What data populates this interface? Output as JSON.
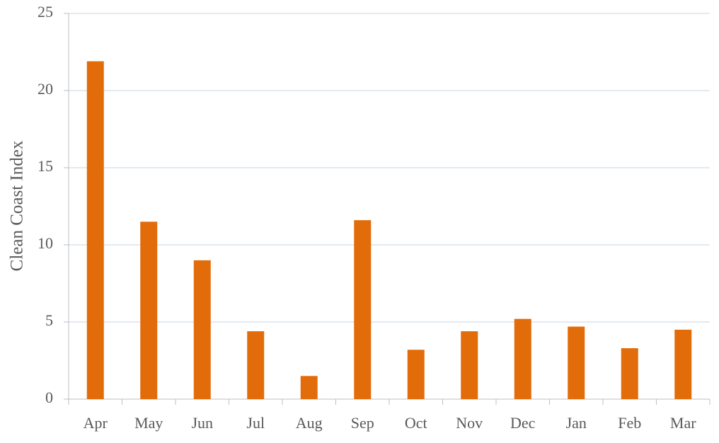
{
  "chart_data": {
    "type": "bar",
    "y_label": "Clean Coast Index",
    "categories": [
      "Apr",
      "May",
      "Jun",
      "Jul",
      "Aug",
      "Sep",
      "Oct",
      "Nov",
      "Dec",
      "Jan",
      "Feb",
      "Mar"
    ],
    "values": [
      21.9,
      11.5,
      9.0,
      4.4,
      1.5,
      11.6,
      3.2,
      4.4,
      5.2,
      4.7,
      3.3,
      4.5
    ],
    "color": "#e36c0a",
    "ylim": [
      0,
      25
    ],
    "yticks": [
      0,
      5,
      10,
      15,
      20,
      25
    ],
    "grid": true
  }
}
